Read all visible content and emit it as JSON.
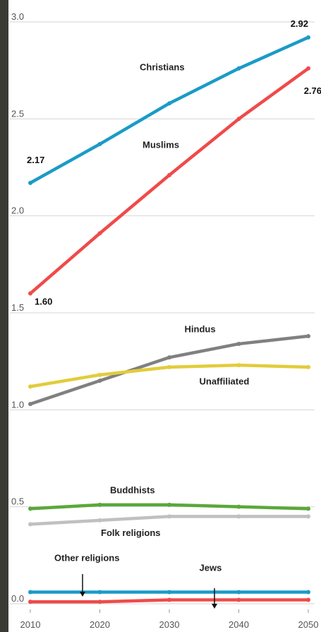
{
  "chart_data": {
    "type": "line",
    "x": [
      2010,
      2020,
      2030,
      2040,
      2050
    ],
    "ylim": [
      0,
      3.0
    ],
    "y_ticks": [
      "3.0",
      "2.5",
      "2.0",
      "1.5",
      "1.0",
      "0.5",
      "0.0"
    ],
    "x_tick_labels": [
      "2010",
      "2020",
      "2030",
      "2040",
      "2050"
    ],
    "grid": true,
    "series": [
      {
        "name": "Christians",
        "color": "#1a9bc7",
        "values": [
          2.17,
          2.37,
          2.58,
          2.76,
          2.92
        ]
      },
      {
        "name": "Muslims",
        "color": "#f04a4a",
        "values": [
          1.6,
          1.91,
          2.21,
          2.5,
          2.76
        ]
      },
      {
        "name": "Hindus",
        "color": "#808080",
        "values": [
          1.03,
          1.15,
          1.27,
          1.34,
          1.38
        ]
      },
      {
        "name": "Unaffiliated",
        "color": "#e2cc3a",
        "values": [
          1.12,
          1.18,
          1.22,
          1.23,
          1.22
        ]
      },
      {
        "name": "Buddhists",
        "color": "#5aa83a",
        "values": [
          0.49,
          0.51,
          0.51,
          0.5,
          0.49
        ]
      },
      {
        "name": "Folk religions",
        "color": "#c0c0c0",
        "values": [
          0.41,
          0.43,
          0.45,
          0.45,
          0.45
        ]
      },
      {
        "name": "Other religions",
        "color": "#1a9bc7",
        "values": [
          0.06,
          0.06,
          0.06,
          0.06,
          0.06
        ]
      },
      {
        "name": "Jews",
        "color": "#f04a4a",
        "values": [
          0.01,
          0.01,
          0.02,
          0.02,
          0.02
        ]
      }
    ],
    "annotations": [
      {
        "text": "2.92",
        "series": "Christians",
        "index": 4
      },
      {
        "text": "2.17",
        "series": "Christians",
        "index": 0
      },
      {
        "text": "2.76",
        "series": "Muslims",
        "index": 4
      },
      {
        "text": "1.60",
        "series": "Muslims",
        "index": 0
      }
    ]
  }
}
